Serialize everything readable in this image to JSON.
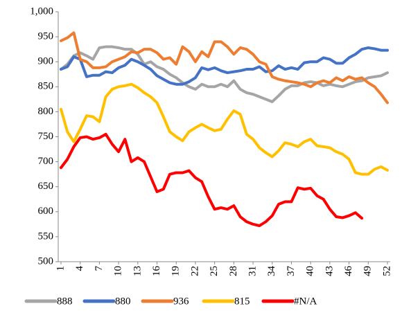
{
  "chart_data": {
    "type": "line",
    "x": [
      1,
      2,
      3,
      4,
      5,
      6,
      7,
      8,
      9,
      10,
      11,
      12,
      13,
      14,
      15,
      16,
      17,
      18,
      19,
      20,
      21,
      22,
      23,
      24,
      25,
      26,
      27,
      28,
      29,
      30,
      31,
      32,
      33,
      34,
      35,
      36,
      37,
      38,
      39,
      40,
      41,
      42,
      43,
      44,
      45,
      46,
      47,
      48,
      49,
      50,
      51,
      52
    ],
    "xlim": [
      1,
      52
    ],
    "xticks": [
      1,
      4,
      7,
      10,
      13,
      16,
      19,
      22,
      25,
      28,
      31,
      34,
      37,
      40,
      43,
      46,
      49,
      52
    ],
    "ylim": [
      500,
      1000
    ],
    "yticks": [
      500,
      550,
      600,
      650,
      700,
      750,
      800,
      850,
      900,
      950,
      {
        "value": 1000,
        "label": "1,000"
      }
    ],
    "series": [
      {
        "name": "888",
        "color": "#a5a5a5",
        "values": [
          885,
          895,
          912,
          918,
          912,
          905,
          928,
          930,
          930,
          928,
          925,
          925,
          915,
          895,
          900,
          890,
          885,
          875,
          868,
          858,
          850,
          845,
          855,
          850,
          850,
          855,
          850,
          862,
          845,
          838,
          835,
          830,
          825,
          820,
          832,
          845,
          852,
          852,
          858,
          860,
          858,
          852,
          855,
          852,
          850,
          855,
          860,
          862,
          868,
          870,
          872,
          878
        ]
      },
      {
        "name": "880",
        "color": "#4472c4",
        "values": [
          885,
          890,
          910,
          905,
          870,
          873,
          873,
          880,
          878,
          888,
          893,
          905,
          900,
          893,
          885,
          872,
          865,
          858,
          855,
          855,
          860,
          868,
          888,
          884,
          888,
          882,
          878,
          880,
          882,
          885,
          885,
          890,
          880,
          882,
          892,
          885,
          888,
          885,
          898,
          900,
          900,
          908,
          905,
          897,
          897,
          908,
          915,
          925,
          928,
          926,
          923,
          923
        ]
      },
      {
        "name": "936",
        "color": "#ed7d31",
        "values": [
          942,
          948,
          958,
          905,
          900,
          888,
          888,
          890,
          900,
          905,
          910,
          920,
          918,
          925,
          925,
          918,
          905,
          908,
          895,
          930,
          920,
          900,
          920,
          910,
          940,
          940,
          930,
          915,
          928,
          925,
          915,
          900,
          895,
          870,
          865,
          862,
          860,
          858,
          855,
          850,
          858,
          862,
          858,
          868,
          862,
          870,
          865,
          868,
          858,
          850,
          835,
          818
        ]
      },
      {
        "name": "815",
        "color": "#ffc000",
        "values": [
          805,
          760,
          740,
          765,
          792,
          790,
          780,
          830,
          845,
          850,
          852,
          855,
          848,
          838,
          830,
          818,
          790,
          760,
          750,
          742,
          760,
          768,
          775,
          768,
          762,
          765,
          785,
          802,
          795,
          755,
          745,
          728,
          718,
          710,
          722,
          738,
          735,
          730,
          740,
          745,
          732,
          730,
          728,
          720,
          715,
          705,
          678,
          675,
          675,
          685,
          690,
          683
        ]
      },
      {
        "name": "#N/A",
        "color": "#ff0000",
        "values": [
          688,
          705,
          730,
          748,
          750,
          745,
          748,
          755,
          735,
          720,
          745,
          700,
          708,
          700,
          670,
          640,
          645,
          675,
          678,
          678,
          682,
          668,
          660,
          630,
          605,
          608,
          605,
          612,
          590,
          580,
          575,
          572,
          580,
          592,
          615,
          620,
          620,
          648,
          645,
          647,
          632,
          625,
          605,
          590,
          588,
          592,
          598,
          587,
          null,
          null,
          null,
          null
        ]
      }
    ]
  }
}
